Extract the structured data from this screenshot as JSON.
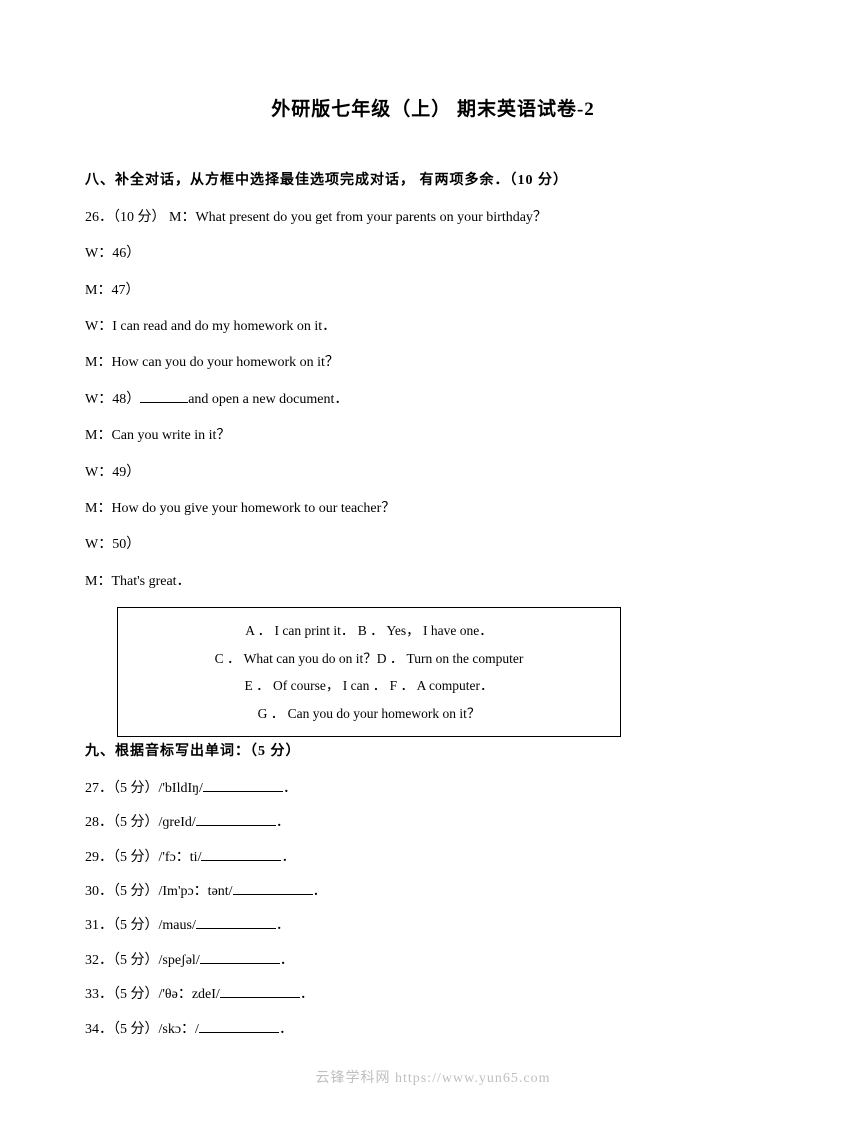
{
  "title": "外研版七年级（上）  期末英语试卷-2",
  "section8": {
    "header": "八、补全对话，从方框中选择最佳选项完成对话，  有两项多余．（10 分）",
    "q26_prefix": "26．（10 分）  M：",
    "q26_text": "What present do you get from your parents on your birthday？",
    "lines": {
      "w46": "W：46）",
      "m47": "M：47）",
      "w_read": "W：I can read and do my homework on it．",
      "m_how": "M：How can you do your homework on it？",
      "w48_pre": "W：48）",
      "w48_post": "and open a new document．",
      "m_write": "M：Can you write in it？",
      "w49": "W：49）",
      "m_give": "M：How do you give your homework to our teacher？",
      "w50": "W：50）",
      "m_great": "M：That's great．"
    },
    "options": {
      "line1": "A ． I can print it． B ． Yes， I have one．",
      "line2": "C ． What can you do on it？D ． Turn on the computer",
      "line3": "E ． Of course， I can ． F ． A computer．",
      "line4": "G ． Can you do your homework on it？"
    }
  },
  "section9": {
    "header": "九、根据音标写出单词：（5 分）",
    "q27": {
      "pre": "27．（5 分）/'bIldIŋ/",
      "post": "．"
    },
    "q28": {
      "pre": "28．（5 分）/ɡreId/",
      "post": "．"
    },
    "q29": {
      "pre": "29．（5 分）/'fɔ：ti/",
      "post": "．"
    },
    "q30": {
      "pre": "30．（5 分）/Im'pɔ：tənt/",
      "post": "．"
    },
    "q31": {
      "pre": "31．（5 分）/maus/",
      "post": "．"
    },
    "q32": {
      "pre": "32．（5 分）/speʃəl/",
      "post": "．"
    },
    "q33": {
      "pre": "33．（5 分）/'θə：zdeI/",
      "post": "．"
    },
    "q34": {
      "pre": "34．（5 分）/skɔ：/",
      "post": "．"
    }
  },
  "footer": "云锋学科网 https://www.yun65.com"
}
